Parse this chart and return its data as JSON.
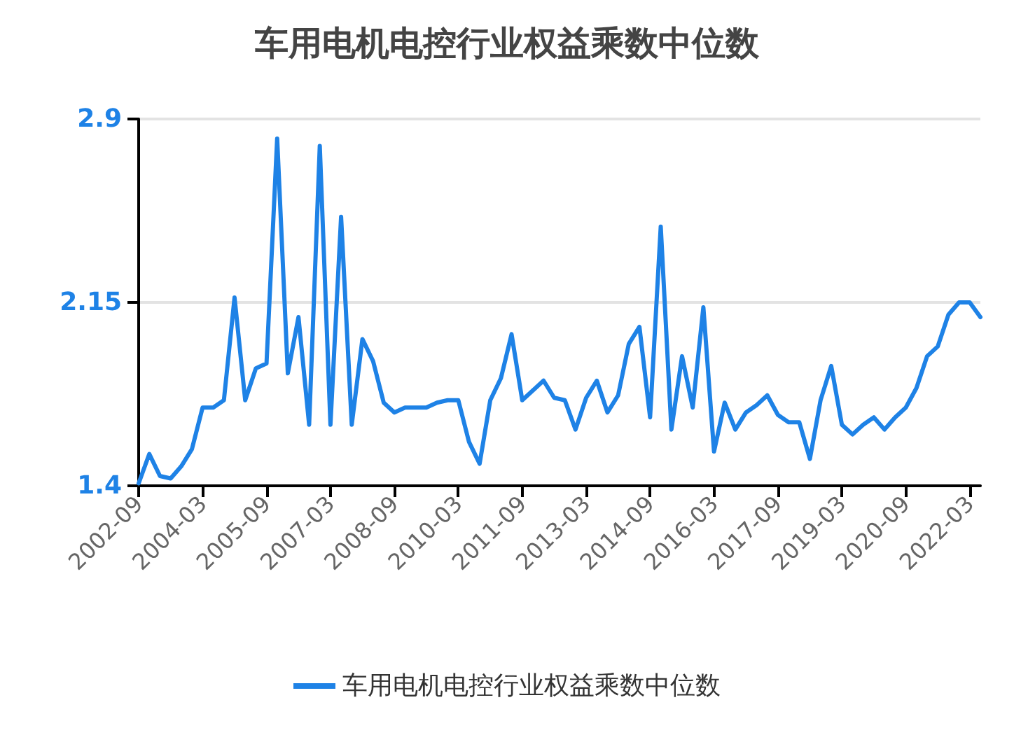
{
  "chart_data": {
    "type": "line",
    "title": "车用电机电控行业权益乘数中位数",
    "categories": [
      "2002-09",
      null,
      null,
      null,
      null,
      null,
      "2004-03",
      null,
      null,
      null,
      null,
      null,
      "2005-09",
      null,
      null,
      null,
      null,
      null,
      "2007-03",
      null,
      null,
      null,
      null,
      null,
      "2008-09",
      null,
      null,
      null,
      null,
      null,
      "2010-03",
      null,
      null,
      null,
      null,
      null,
      "2011-09",
      null,
      null,
      null,
      null,
      null,
      "2013-03",
      null,
      null,
      null,
      null,
      null,
      "2014-09",
      null,
      null,
      null,
      null,
      null,
      "2016-03",
      null,
      null,
      null,
      null,
      null,
      "2017-09",
      null,
      null,
      null,
      null,
      null,
      "2019-03",
      null,
      null,
      null,
      null,
      null,
      "2020-09",
      null,
      null,
      null,
      null,
      null,
      "2022-03",
      null
    ],
    "series": [
      {
        "name": "车用电机电控行业权益乘数中位数",
        "color": "#1e82e6",
        "values": [
          1.41,
          1.53,
          1.44,
          1.43,
          1.48,
          1.55,
          1.72,
          1.72,
          1.75,
          2.17,
          1.75,
          1.88,
          1.9,
          2.82,
          1.86,
          2.09,
          1.65,
          2.79,
          1.65,
          2.5,
          1.65,
          2.0,
          1.91,
          1.74,
          1.7,
          1.72,
          1.72,
          1.72,
          1.74,
          1.75,
          1.75,
          1.58,
          1.49,
          1.75,
          1.84,
          2.02,
          1.75,
          1.79,
          1.83,
          1.76,
          1.75,
          1.63,
          1.76,
          1.83,
          1.7,
          1.77,
          1.98,
          2.05,
          1.68,
          2.46,
          1.63,
          1.93,
          1.72,
          2.13,
          1.54,
          1.74,
          1.63,
          1.7,
          1.73,
          1.77,
          1.69,
          1.66,
          1.66,
          1.51,
          1.75,
          1.89,
          1.65,
          1.61,
          1.65,
          1.68,
          1.63,
          1.68,
          1.72,
          1.8,
          1.93,
          1.97,
          2.1,
          2.15,
          2.15,
          2.09
        ]
      }
    ],
    "ylim": [
      1.4,
      2.9
    ],
    "yticks": [
      1.4,
      2.15,
      2.9
    ],
    "grid": "y",
    "legend": "bottom",
    "marker": "none",
    "line_style": "solid"
  }
}
